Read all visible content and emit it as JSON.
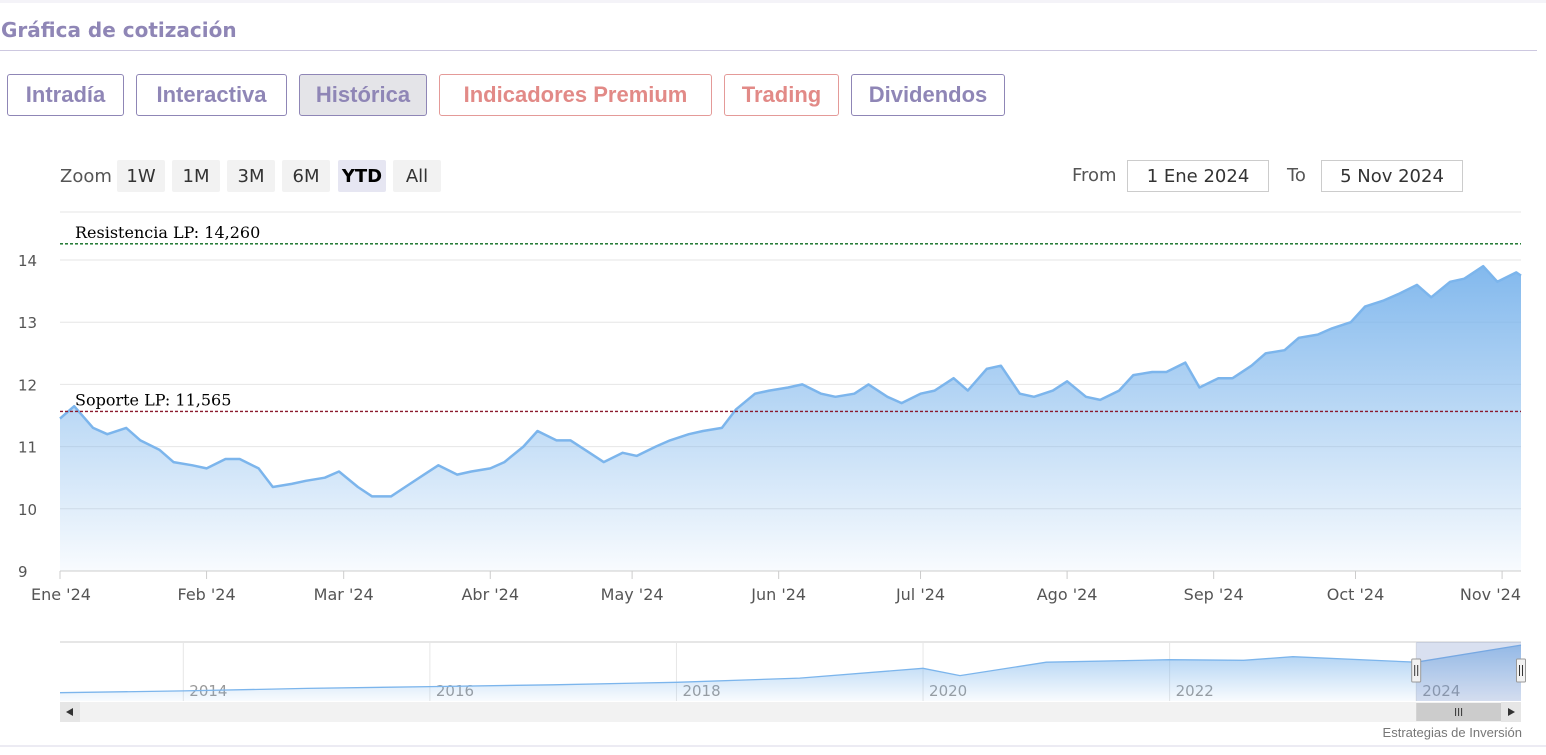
{
  "header": {
    "title": "Gráfica de cotización"
  },
  "tabs": [
    {
      "label": "Intradía",
      "state": "default",
      "color": "#8f86b6"
    },
    {
      "label": "Interactiva",
      "state": "default",
      "color": "#8f86b6"
    },
    {
      "label": "Histórica",
      "state": "active",
      "color": "#8f86b6"
    },
    {
      "label": "Indicadores Premium",
      "state": "default",
      "color": "#e28a87"
    },
    {
      "label": "Trading",
      "state": "default",
      "color": "#e28a87"
    },
    {
      "label": "Dividendos",
      "state": "default",
      "color": "#8f86b6"
    }
  ],
  "range_selector": {
    "zoom_label": "Zoom",
    "buttons": [
      "1W",
      "1M",
      "3M",
      "6M",
      "YTD",
      "All"
    ],
    "selected": "YTD",
    "from_label": "From",
    "from_value": "1 Ene 2024",
    "to_label": "To",
    "to_value": "5 Nov 2024"
  },
  "chart_data": {
    "type": "area",
    "title": "",
    "xlabel": "",
    "ylabel": "",
    "ylim": [
      9,
      14.5
    ],
    "yticks": [
      9,
      10,
      11,
      12,
      13,
      14
    ],
    "x_ticks": [
      "Ene '24",
      "Feb '24",
      "Mar '24",
      "Abr '24",
      "May '24",
      "Jun '24",
      "Jul '24",
      "Ago '24",
      "Sep '24",
      "Oct '24",
      "Nov '24"
    ],
    "x_tick_dates": [
      "2024-01-01",
      "2024-02-01",
      "2024-03-01",
      "2024-04-01",
      "2024-05-01",
      "2024-06-01",
      "2024-07-01",
      "2024-08-01",
      "2024-09-01",
      "2024-10-01",
      "2024-11-01"
    ],
    "x_range": [
      "2024-01-01",
      "2024-11-05"
    ],
    "grid": true,
    "series": [
      {
        "color": "#7cb5ec",
        "points": [
          [
            "2024-01-01",
            11.45
          ],
          [
            "2024-01-04",
            11.65
          ],
          [
            "2024-01-08",
            11.3
          ],
          [
            "2024-01-11",
            11.2
          ],
          [
            "2024-01-15",
            11.3
          ],
          [
            "2024-01-18",
            11.1
          ],
          [
            "2024-01-22",
            10.95
          ],
          [
            "2024-01-25",
            10.75
          ],
          [
            "2024-01-29",
            10.7
          ],
          [
            "2024-02-01",
            10.65
          ],
          [
            "2024-02-05",
            10.8
          ],
          [
            "2024-02-08",
            10.8
          ],
          [
            "2024-02-12",
            10.65
          ],
          [
            "2024-02-15",
            10.35
          ],
          [
            "2024-02-19",
            10.4
          ],
          [
            "2024-02-22",
            10.45
          ],
          [
            "2024-02-26",
            10.5
          ],
          [
            "2024-02-29",
            10.6
          ],
          [
            "2024-03-04",
            10.35
          ],
          [
            "2024-03-07",
            10.2
          ],
          [
            "2024-03-11",
            10.2
          ],
          [
            "2024-03-14",
            10.35
          ],
          [
            "2024-03-18",
            10.55
          ],
          [
            "2024-03-21",
            10.7
          ],
          [
            "2024-03-25",
            10.55
          ],
          [
            "2024-03-28",
            10.6
          ],
          [
            "2024-04-01",
            10.65
          ],
          [
            "2024-04-04",
            10.75
          ],
          [
            "2024-04-08",
            11.0
          ],
          [
            "2024-04-11",
            11.25
          ],
          [
            "2024-04-15",
            11.1
          ],
          [
            "2024-04-18",
            11.1
          ],
          [
            "2024-04-22",
            10.9
          ],
          [
            "2024-04-25",
            10.75
          ],
          [
            "2024-04-29",
            10.9
          ],
          [
            "2024-05-02",
            10.85
          ],
          [
            "2024-05-06",
            11.0
          ],
          [
            "2024-05-09",
            11.1
          ],
          [
            "2024-05-13",
            11.2
          ],
          [
            "2024-05-16",
            11.25
          ],
          [
            "2024-05-20",
            11.3
          ],
          [
            "2024-05-23",
            11.6
          ],
          [
            "2024-05-27",
            11.85
          ],
          [
            "2024-05-30",
            11.9
          ],
          [
            "2024-06-03",
            11.95
          ],
          [
            "2024-06-06",
            12.0
          ],
          [
            "2024-06-10",
            11.85
          ],
          [
            "2024-06-13",
            11.8
          ],
          [
            "2024-06-17",
            11.85
          ],
          [
            "2024-06-20",
            12.0
          ],
          [
            "2024-06-24",
            11.8
          ],
          [
            "2024-06-27",
            11.7
          ],
          [
            "2024-07-01",
            11.85
          ],
          [
            "2024-07-04",
            11.9
          ],
          [
            "2024-07-08",
            12.1
          ],
          [
            "2024-07-11",
            11.9
          ],
          [
            "2024-07-15",
            12.25
          ],
          [
            "2024-07-18",
            12.3
          ],
          [
            "2024-07-22",
            11.85
          ],
          [
            "2024-07-25",
            11.8
          ],
          [
            "2024-07-29",
            11.9
          ],
          [
            "2024-08-01",
            12.05
          ],
          [
            "2024-08-05",
            11.8
          ],
          [
            "2024-08-08",
            11.75
          ],
          [
            "2024-08-12",
            11.9
          ],
          [
            "2024-08-15",
            12.15
          ],
          [
            "2024-08-19",
            12.2
          ],
          [
            "2024-08-22",
            12.2
          ],
          [
            "2024-08-26",
            12.35
          ],
          [
            "2024-08-29",
            11.95
          ],
          [
            "2024-09-02",
            12.1
          ],
          [
            "2024-09-05",
            12.1
          ],
          [
            "2024-09-09",
            12.3
          ],
          [
            "2024-09-12",
            12.5
          ],
          [
            "2024-09-16",
            12.55
          ],
          [
            "2024-09-19",
            12.75
          ],
          [
            "2024-09-23",
            12.8
          ],
          [
            "2024-09-26",
            12.9
          ],
          [
            "2024-09-30",
            13.0
          ],
          [
            "2024-10-03",
            13.25
          ],
          [
            "2024-10-07",
            13.35
          ],
          [
            "2024-10-10",
            13.45
          ],
          [
            "2024-10-14",
            13.6
          ],
          [
            "2024-10-17",
            13.4
          ],
          [
            "2024-10-21",
            13.65
          ],
          [
            "2024-10-24",
            13.7
          ],
          [
            "2024-10-28",
            13.9
          ],
          [
            "2024-10-31",
            13.65
          ],
          [
            "2024-11-04",
            13.8
          ],
          [
            "2024-11-05",
            13.75
          ]
        ]
      }
    ],
    "reference_lines": [
      {
        "label": "Resistencia LP: 14,260",
        "value": 14.26,
        "color": "#0b6b1e"
      },
      {
        "label": "Soporte LP: 11,565",
        "value": 11.565,
        "color": "#8b1a2e"
      }
    ]
  },
  "navigator": {
    "year_labels": [
      "2014",
      "2016",
      "2018",
      "2020",
      "2022",
      "2024"
    ],
    "x_range": [
      2013,
      2024.85
    ],
    "selection": [
      2024.0,
      2024.85
    ],
    "series": [
      [
        2013.0,
        6.2
      ],
      [
        2014.0,
        6.5
      ],
      [
        2015.0,
        6.9
      ],
      [
        2016.0,
        7.2
      ],
      [
        2017.0,
        7.5
      ],
      [
        2018.0,
        7.9
      ],
      [
        2019.0,
        8.6
      ],
      [
        2020.0,
        10.2
      ],
      [
        2020.3,
        9.0
      ],
      [
        2021.0,
        11.2
      ],
      [
        2022.0,
        11.6
      ],
      [
        2022.6,
        11.5
      ],
      [
        2023.0,
        12.1
      ],
      [
        2024.0,
        11.2
      ],
      [
        2024.85,
        14.0
      ]
    ]
  },
  "footer": {
    "credit": "Estrategias de Inversión"
  }
}
